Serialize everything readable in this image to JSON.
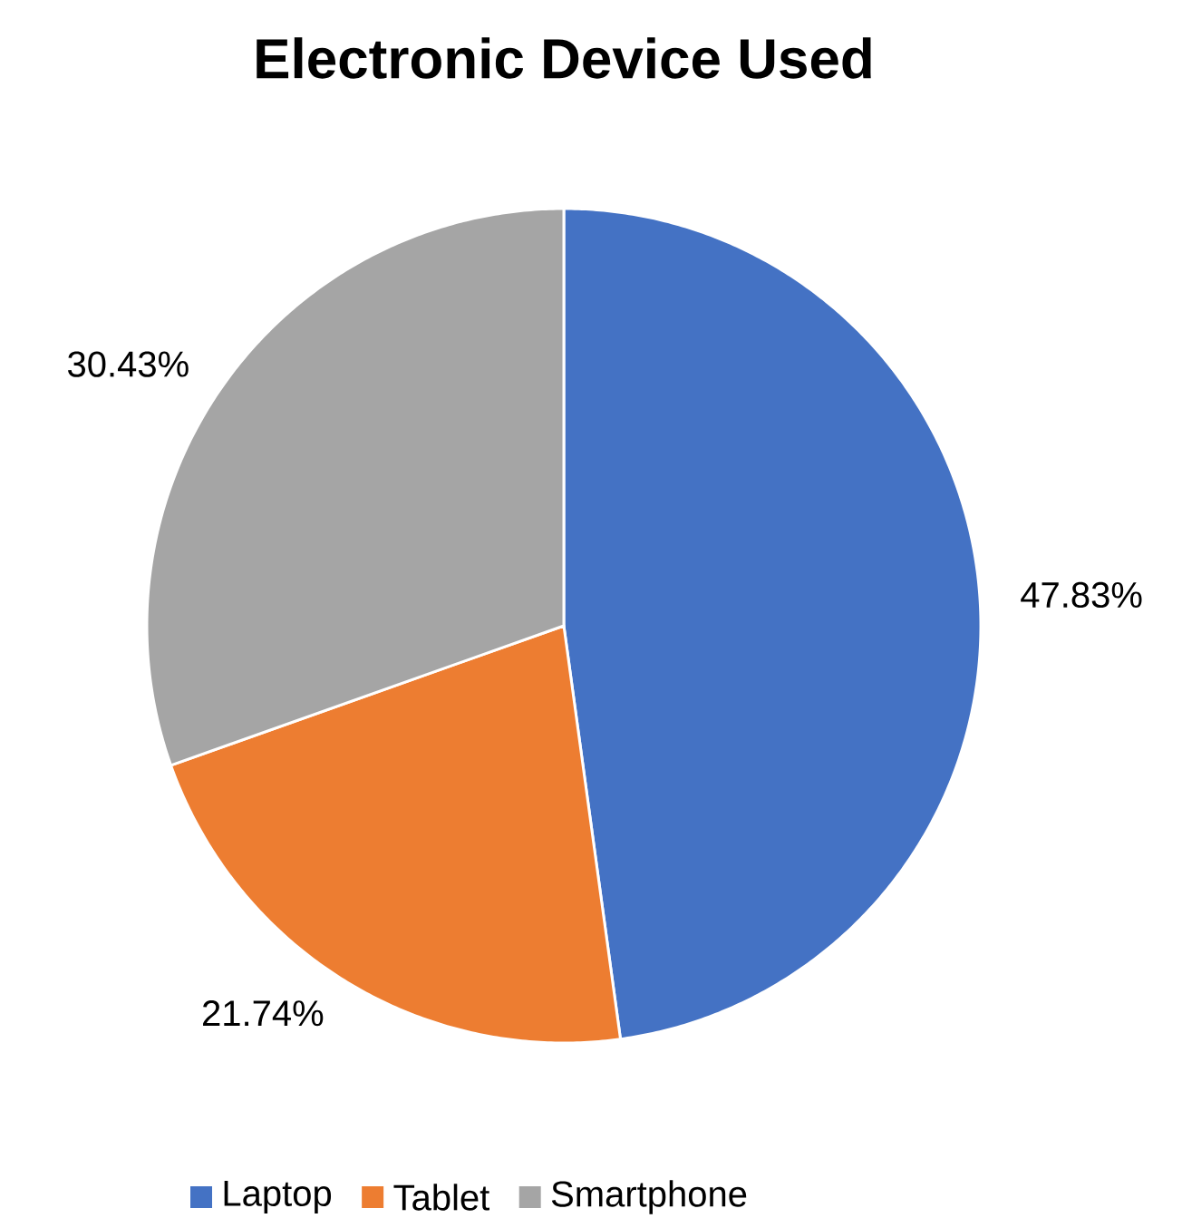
{
  "chart_data": {
    "type": "pie",
    "title": "Electronic Device Used",
    "categories": [
      "Laptop",
      "Tablet",
      "Smartphone"
    ],
    "values": [
      47.83,
      21.74,
      30.43
    ],
    "value_labels": [
      "47.83%",
      "21.74%",
      "30.43%"
    ],
    "colors": [
      "#4472c4",
      "#ed7d31",
      "#a5a5a5"
    ],
    "legend": "bottom"
  }
}
